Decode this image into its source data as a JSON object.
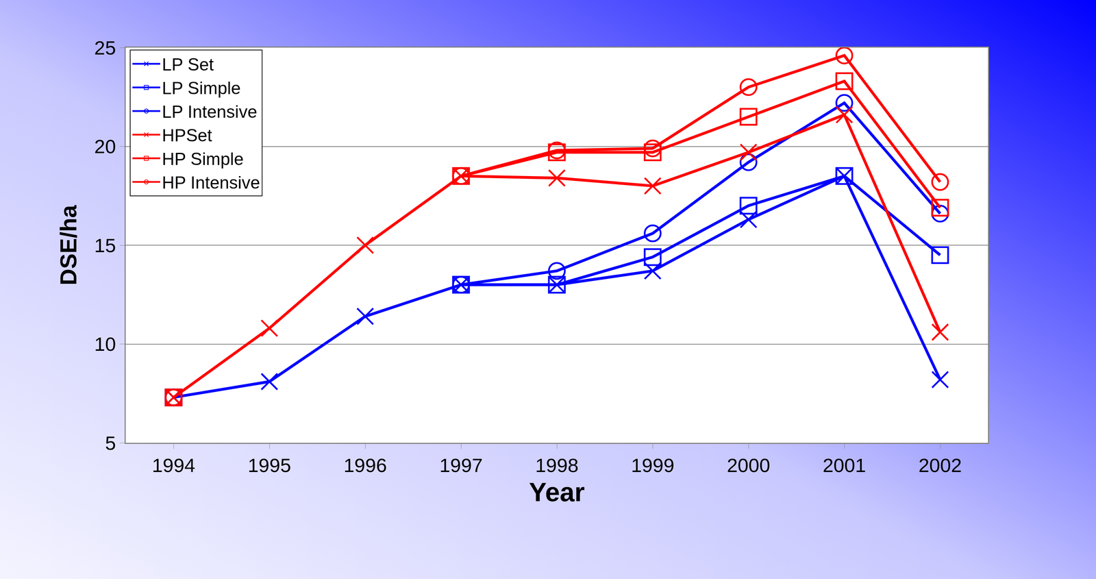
{
  "chart_data": {
    "type": "line",
    "x_label": "Year",
    "y_label": "DSE/ha",
    "categories": [
      "1994",
      "1995",
      "1996",
      "1997",
      "1998",
      "1999",
      "2000",
      "2001",
      "2002"
    ],
    "series": [
      {
        "name": "LP Set",
        "color": "#0000ff",
        "marker": "x",
        "values": [
          7.3,
          8.1,
          11.4,
          13.0,
          13.0,
          13.7,
          16.3,
          18.5,
          8.2
        ]
      },
      {
        "name": "LP Simple",
        "color": "#0000ff",
        "marker": "square",
        "values": [
          7.3,
          null,
          null,
          13.0,
          13.0,
          14.4,
          17.0,
          18.5,
          14.5
        ]
      },
      {
        "name": "LP Intensive",
        "color": "#0000ff",
        "marker": "circle",
        "values": [
          7.3,
          null,
          null,
          13.0,
          13.7,
          15.6,
          19.2,
          22.2,
          16.6
        ]
      },
      {
        "name": "HPSet",
        "color": "#ff0000",
        "marker": "x",
        "values": [
          7.3,
          10.8,
          15.0,
          18.5,
          18.4,
          18.0,
          19.7,
          21.6,
          10.6
        ]
      },
      {
        "name": "HP Simple",
        "color": "#ff0000",
        "marker": "square",
        "values": [
          7.3,
          null,
          null,
          18.5,
          19.7,
          19.7,
          21.5,
          23.3,
          16.9
        ]
      },
      {
        "name": "HP Intensive",
        "color": "#ff0000",
        "marker": "circle",
        "values": [
          7.3,
          null,
          null,
          18.5,
          19.8,
          19.9,
          23.0,
          24.6,
          18.2
        ]
      }
    ],
    "ylim": [
      5,
      25
    ],
    "yticks": [
      5,
      10,
      15,
      20,
      25
    ],
    "grid": true,
    "legend": "top-left"
  }
}
